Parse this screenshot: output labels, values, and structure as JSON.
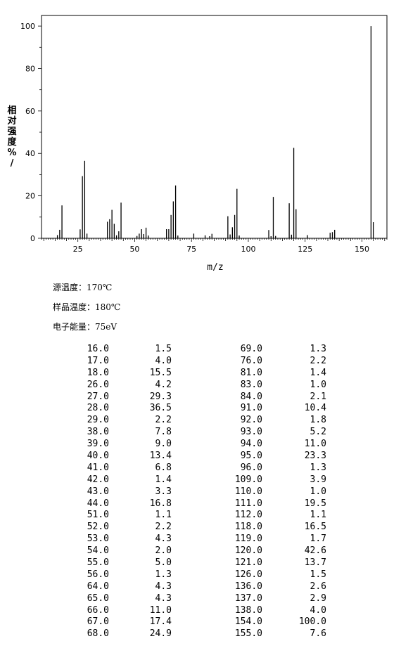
{
  "chart_data": {
    "type": "bar",
    "title": "",
    "xlabel": "m/z",
    "ylabel": "相对强度%/",
    "xlim": [
      9,
      161
    ],
    "ylim": [
      0,
      105
    ],
    "xticks": [
      25,
      50,
      75,
      100,
      125,
      150
    ],
    "yticks": [
      0,
      20,
      40,
      60,
      80,
      100
    ],
    "grid": false,
    "x": [
      16.0,
      17.0,
      18.0,
      26.0,
      27.0,
      28.0,
      29.0,
      38.0,
      39.0,
      40.0,
      41.0,
      42.0,
      43.0,
      44.0,
      51.0,
      52.0,
      53.0,
      54.0,
      55.0,
      56.0,
      64.0,
      65.0,
      66.0,
      67.0,
      68.0,
      69.0,
      76.0,
      81.0,
      83.0,
      84.0,
      91.0,
      92.0,
      93.0,
      94.0,
      95.0,
      96.0,
      109.0,
      110.0,
      111.0,
      112.0,
      118.0,
      119.0,
      120.0,
      121.0,
      126.0,
      136.0,
      137.0,
      138.0,
      154.0,
      155.0
    ],
    "values": [
      1.5,
      4.0,
      15.5,
      4.2,
      29.3,
      36.5,
      2.2,
      7.8,
      9.0,
      13.4,
      6.8,
      1.4,
      3.3,
      16.8,
      1.1,
      2.2,
      4.3,
      2.0,
      5.0,
      1.3,
      4.3,
      4.3,
      11.0,
      17.4,
      24.9,
      1.3,
      2.2,
      1.4,
      1.0,
      2.1,
      10.4,
      1.8,
      5.2,
      11.0,
      23.3,
      1.3,
      3.9,
      1.0,
      19.5,
      1.1,
      16.5,
      1.7,
      42.6,
      13.7,
      1.5,
      2.6,
      2.9,
      4.0,
      100.0,
      7.6
    ]
  },
  "conditions": {
    "source_temp": "源温度：170℃",
    "sample_temp": "样品温度：180℃",
    "electron_energy": "电子能量：75eV"
  },
  "peak_table": {
    "left": [
      [
        "16.0",
        "1.5"
      ],
      [
        "17.0",
        "4.0"
      ],
      [
        "18.0",
        "15.5"
      ],
      [
        "26.0",
        "4.2"
      ],
      [
        "27.0",
        "29.3"
      ],
      [
        "28.0",
        "36.5"
      ],
      [
        "29.0",
        "2.2"
      ],
      [
        "38.0",
        "7.8"
      ],
      [
        "39.0",
        "9.0"
      ],
      [
        "40.0",
        "13.4"
      ],
      [
        "41.0",
        "6.8"
      ],
      [
        "42.0",
        "1.4"
      ],
      [
        "43.0",
        "3.3"
      ],
      [
        "44.0",
        "16.8"
      ],
      [
        "51.0",
        "1.1"
      ],
      [
        "52.0",
        "2.2"
      ],
      [
        "53.0",
        "4.3"
      ],
      [
        "54.0",
        "2.0"
      ],
      [
        "55.0",
        "5.0"
      ],
      [
        "56.0",
        "1.3"
      ],
      [
        "64.0",
        "4.3"
      ],
      [
        "65.0",
        "4.3"
      ],
      [
        "66.0",
        "11.0"
      ],
      [
        "67.0",
        "17.4"
      ],
      [
        "68.0",
        "24.9"
      ]
    ],
    "right": [
      [
        "69.0",
        "1.3"
      ],
      [
        "76.0",
        "2.2"
      ],
      [
        "81.0",
        "1.4"
      ],
      [
        "83.0",
        "1.0"
      ],
      [
        "84.0",
        "2.1"
      ],
      [
        "91.0",
        "10.4"
      ],
      [
        "92.0",
        "1.8"
      ],
      [
        "93.0",
        "5.2"
      ],
      [
        "94.0",
        "11.0"
      ],
      [
        "95.0",
        "23.3"
      ],
      [
        "96.0",
        "1.3"
      ],
      [
        "109.0",
        "3.9"
      ],
      [
        "110.0",
        "1.0"
      ],
      [
        "111.0",
        "19.5"
      ],
      [
        "112.0",
        "1.1"
      ],
      [
        "118.0",
        "16.5"
      ],
      [
        "119.0",
        "1.7"
      ],
      [
        "120.0",
        "42.6"
      ],
      [
        "121.0",
        "13.7"
      ],
      [
        "126.0",
        "1.5"
      ],
      [
        "136.0",
        "2.6"
      ],
      [
        "137.0",
        "2.9"
      ],
      [
        "138.0",
        "4.0"
      ],
      [
        "154.0",
        "100.0"
      ],
      [
        "155.0",
        "7.6"
      ]
    ]
  }
}
